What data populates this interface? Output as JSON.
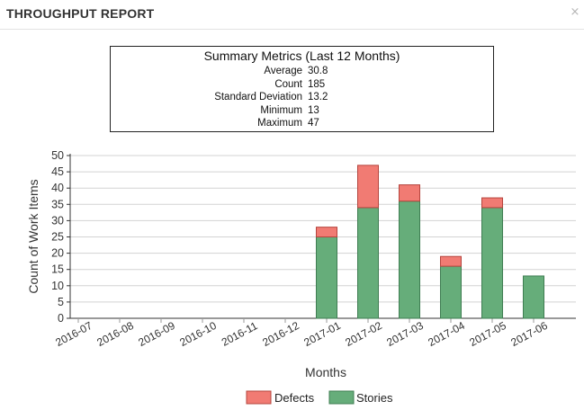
{
  "header": {
    "title": "THROUGHPUT REPORT",
    "close_glyph": "×"
  },
  "summary": {
    "title": "Summary Metrics (Last 12 Months)",
    "metrics": [
      {
        "label": "Average",
        "value": "30.8"
      },
      {
        "label": "Count",
        "value": "185"
      },
      {
        "label": "Standard Deviation",
        "value": "13.2"
      },
      {
        "label": "Minimum",
        "value": "13"
      },
      {
        "label": "Maximum",
        "value": "47"
      }
    ]
  },
  "chart_data": {
    "type": "bar",
    "stacked": true,
    "categories": [
      "2016-07",
      "2016-08",
      "2016-09",
      "2016-10",
      "2016-11",
      "2016-12",
      "2017-01",
      "2017-02",
      "2017-03",
      "2017-04",
      "2017-05",
      "2017-06"
    ],
    "series": [
      {
        "name": "Stories",
        "color": "#66ad7a",
        "values": [
          0,
          0,
          0,
          0,
          0,
          0,
          25,
          34,
          36,
          16,
          34,
          13
        ]
      },
      {
        "name": "Defects",
        "color": "#f17b73",
        "values": [
          0,
          0,
          0,
          0,
          0,
          0,
          3,
          13,
          5,
          3,
          3,
          0
        ]
      }
    ],
    "xlabel": "Months",
    "ylabel": "Count of Work Items",
    "ylim": [
      0,
      50
    ],
    "yticks": [
      0,
      5,
      10,
      15,
      20,
      25,
      30,
      35,
      40,
      45,
      50
    ],
    "grid": true,
    "legend": {
      "position": "bottom",
      "order": [
        "Defects",
        "Stories"
      ]
    }
  }
}
